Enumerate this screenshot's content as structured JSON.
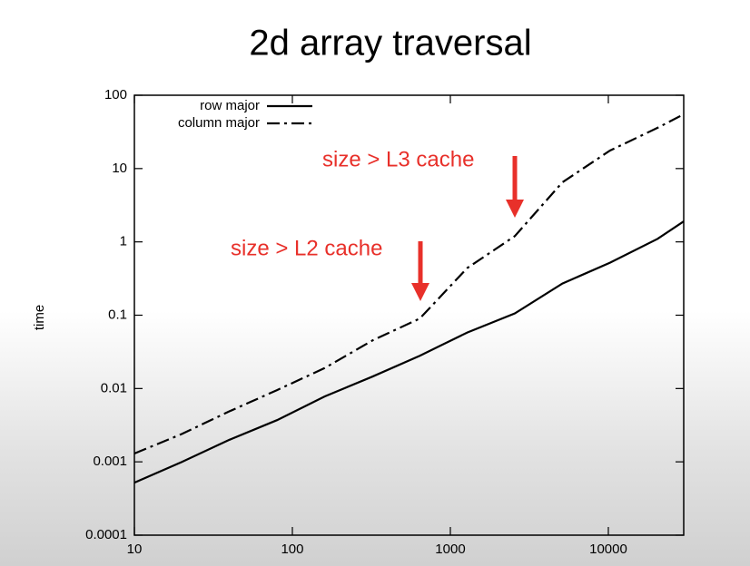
{
  "chart_data": {
    "type": "line",
    "title": "2d array traversal",
    "y_label": "time",
    "x": [
      10,
      20,
      40,
      80,
      160,
      320,
      640,
      1280,
      2560,
      5120,
      10240,
      20480,
      30000
    ],
    "series": [
      {
        "name": "row major",
        "color": "#000000",
        "dash": "solid",
        "values": [
          0.00052,
          0.001,
          0.002,
          0.0037,
          0.0078,
          0.0145,
          0.028,
          0.058,
          0.106,
          0.27,
          0.52,
          1.1,
          1.9
        ]
      },
      {
        "name": "column major",
        "color": "#000000",
        "dash": "dash-dot",
        "values": [
          0.0013,
          0.0024,
          0.0049,
          0.0095,
          0.019,
          0.045,
          0.09,
          0.44,
          1.2,
          6.5,
          17.6,
          36,
          55
        ]
      }
    ],
    "xlim": [
      10,
      30000
    ],
    "ylim": [
      0.0001,
      100
    ],
    "xlog": true,
    "ylog": true,
    "xticks": [
      10,
      100,
      1000,
      10000
    ],
    "yticks": [
      0.0001,
      0.001,
      0.01,
      0.1,
      1,
      10,
      100
    ],
    "legend": "upper left",
    "annotations": [
      {
        "text": "size > L3 cache",
        "color": "#e8302a"
      },
      {
        "text": "size > L2 cache",
        "color": "#e8302a"
      }
    ]
  }
}
